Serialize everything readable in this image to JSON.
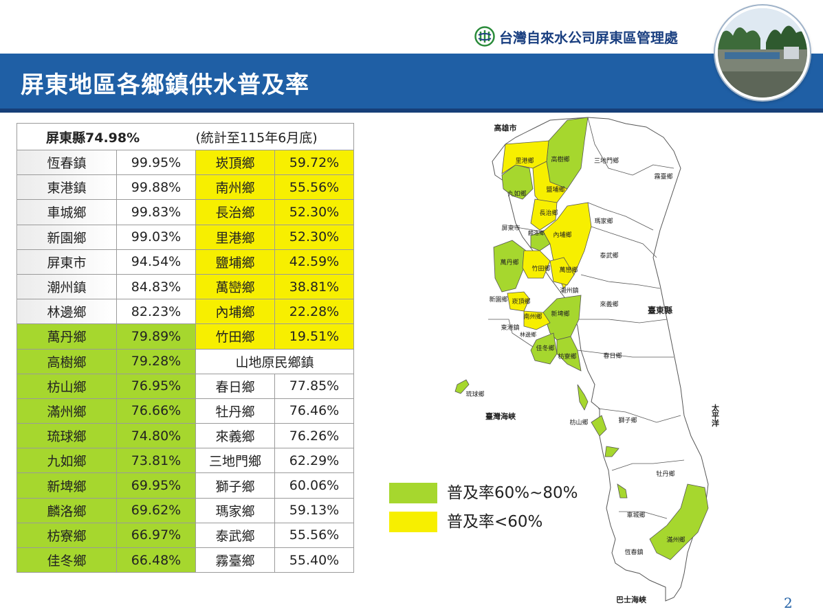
{
  "header": {
    "organization": "台灣自來水公司屏東區管理處",
    "title": "屏東地區各鄉鎮供水普及率",
    "page_number": "2"
  },
  "summary": {
    "county": "屏東縣74.98%",
    "note": "(統計至115年6月底)"
  },
  "section_label": "山地原民鄉鎮",
  "left_rows": [
    {
      "name": "恆春鎮",
      "value": "99.95%"
    },
    {
      "name": "東港鎮",
      "value": "99.88%"
    },
    {
      "name": "車城鄉",
      "value": "99.83%"
    },
    {
      "name": "新園鄉",
      "value": "99.03%"
    },
    {
      "name": "屏東市",
      "value": "94.54%"
    },
    {
      "name": "潮州鎮",
      "value": "84.83%"
    },
    {
      "name": "林邊鄉",
      "value": "82.23%"
    },
    {
      "name": "萬丹鄉",
      "value": "79.89%"
    },
    {
      "name": "高樹鄉",
      "value": "79.28%"
    },
    {
      "name": "枋山鄉",
      "value": "76.95%"
    },
    {
      "name": "滿州鄉",
      "value": "76.66%"
    },
    {
      "name": "琉球鄉",
      "value": "74.80%"
    },
    {
      "name": "九如鄉",
      "value": "73.81%"
    },
    {
      "name": "新埤鄉",
      "value": "69.95%"
    },
    {
      "name": "麟洛鄉",
      "value": "69.62%"
    },
    {
      "name": "枋寮鄉",
      "value": "66.97%"
    },
    {
      "name": "佳冬鄉",
      "value": "66.48%"
    }
  ],
  "right_rows_top": [
    {
      "name": "崁頂鄉",
      "value": "59.72%"
    },
    {
      "name": "南州鄉",
      "value": "55.56%"
    },
    {
      "name": "長治鄉",
      "value": "52.30%"
    },
    {
      "name": "里港鄉",
      "value": "52.30%"
    },
    {
      "name": "鹽埔鄉",
      "value": "42.59%"
    },
    {
      "name": "萬巒鄉",
      "value": "38.81%"
    },
    {
      "name": "內埔鄉",
      "value": "22.28%"
    },
    {
      "name": "竹田鄉",
      "value": "19.51%"
    }
  ],
  "right_rows_bottom": [
    {
      "name": "春日鄉",
      "value": "77.85%"
    },
    {
      "name": "牡丹鄉",
      "value": "76.46%"
    },
    {
      "name": "來義鄉",
      "value": "76.26%"
    },
    {
      "name": "三地門鄉",
      "value": "62.29%"
    },
    {
      "name": "獅子鄉",
      "value": "60.06%"
    },
    {
      "name": "瑪家鄉",
      "value": "59.13%"
    },
    {
      "name": "泰武鄉",
      "value": "55.56%"
    },
    {
      "name": "霧臺鄉",
      "value": "55.40%"
    }
  ],
  "legend": [
    {
      "label": "普及率60%~80%",
      "color": "#a6d72e"
    },
    {
      "label": "普及率<60%",
      "color": "#f7ef00"
    }
  ],
  "map": {
    "labels": {
      "kaohsiung": "高雄市",
      "taitung": "臺東縣",
      "strait": "臺灣海峽",
      "pacific": "太平洋",
      "bashi": "巴士海峽",
      "ligang": "里港鄉",
      "gaoshu": "高樹鄉",
      "sandimen": "三地門鄉",
      "wutai": "霧臺鄉",
      "jiuru": "九如鄉",
      "yanpu": "鹽埔鄉",
      "changzhi": "長治鄉",
      "pingtung": "屏東市",
      "linluo": "麟洛鄉",
      "neipu": "內埔鄉",
      "majia": "瑪家鄉",
      "taiwu": "泰武鄉",
      "wandan": "萬丹鄉",
      "zhutian": "竹田鄉",
      "wanluan": "萬巒鄉",
      "chaozhou": "潮州鎮",
      "xinyuan": "新園鄉",
      "kanding": "崁頂鄉",
      "laiyi": "來義鄉",
      "nanzhou": "南州鄉",
      "xinpi": "新埤鄉",
      "donggang": "東港鎮",
      "linbian": "林邊鄉",
      "jiadong": "佳冬鄉",
      "fangliao": "枋寮鄉",
      "chunri": "春日鄉",
      "liuqiu": "琉球鄉",
      "fangshan": "枋山鄉",
      "shizi": "獅子鄉",
      "mudan": "牡丹鄉",
      "checheng": "車城鄉",
      "manzhou": "滿州鄉",
      "hengchun": "恆春鎮"
    }
  }
}
